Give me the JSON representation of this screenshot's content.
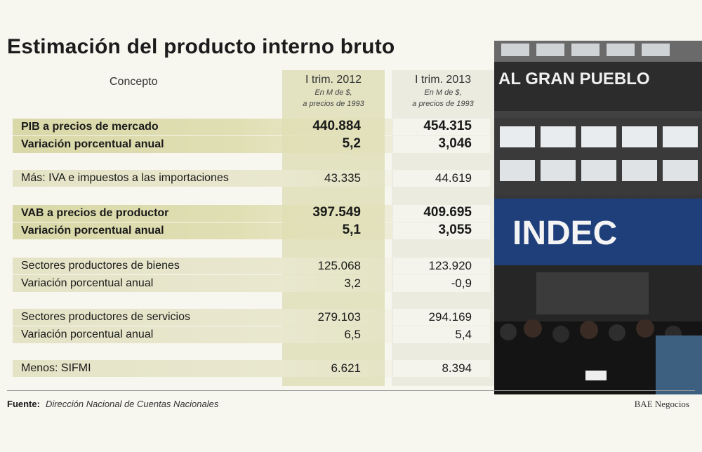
{
  "title": "Estimación del producto interno bruto",
  "columns": {
    "concept": "Concepto",
    "c2012": {
      "label": "I trim. 2012",
      "sub1": "En M de $,",
      "sub2": "a precios de 1993"
    },
    "c2013": {
      "label": "I trim. 2013",
      "sub1": "En M de $,",
      "sub2": "a precios de 1993"
    }
  },
  "rows": [
    {
      "label": "PIB a precios de mercado",
      "v2012": "440.884",
      "v2013": "454.315"
    },
    {
      "label": "Variación porcentual anual",
      "v2012": "5,2",
      "v2013": "3,046"
    },
    {
      "label": "Más: IVA e impuestos a las importaciones",
      "v2012": "43.335",
      "v2013": "44.619"
    },
    {
      "label": "VAB a precios de productor",
      "v2012": "397.549",
      "v2013": "409.695"
    },
    {
      "label": "Variación porcentual anual",
      "v2012": "5,1",
      "v2013": "3,055"
    },
    {
      "label": "Sectores productores de bienes",
      "v2012": "125.068",
      "v2013": "123.920"
    },
    {
      "label": "Variación porcentual anual",
      "v2012": "3,2",
      "v2013": "-0,9"
    },
    {
      "label": "Sectores productores de servicios",
      "v2012": "279.103",
      "v2013": "294.169"
    },
    {
      "label": "Variación porcentual anual",
      "v2012": "6,5",
      "v2013": "5,4"
    },
    {
      "label": "Menos: SIFMI",
      "v2012": "6.621",
      "v2013": "8.394"
    }
  ],
  "footer": {
    "source_label": "Fuente:",
    "source": "Dirección Nacional de Cuentas Nacionales",
    "credit": "BAE Negocios"
  },
  "photo": {
    "sign_top": "AL GRAN PUEBLO",
    "sign_logo": "INDEC"
  }
}
